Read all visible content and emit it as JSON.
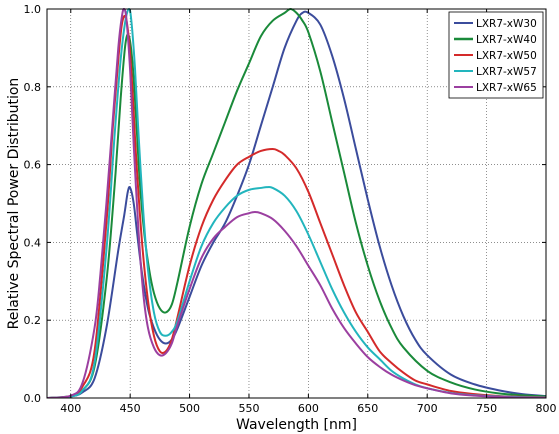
{
  "chart_data": {
    "type": "line",
    "title": "",
    "xlabel": "Wavelength [nm]",
    "ylabel": "Relative Spectral Power Distribution",
    "xlim": [
      380,
      800
    ],
    "ylim": [
      0,
      1.0
    ],
    "xticks": [
      400,
      450,
      500,
      550,
      600,
      650,
      700,
      750,
      800
    ],
    "yticks": [
      0.0,
      0.2,
      0.4,
      0.6,
      0.8,
      1.0
    ],
    "grid": true,
    "legend_position": "top-right",
    "series": [
      {
        "name": "LXR7-xW30",
        "color": "#3b4c9c",
        "x": [
          380,
          400,
          410,
          420,
          430,
          440,
          445,
          448,
          450,
          453,
          456,
          460,
          465,
          470,
          475,
          480,
          485,
          490,
          500,
          510,
          520,
          530,
          540,
          550,
          560,
          570,
          580,
          590,
          595,
          600,
          610,
          620,
          630,
          640,
          650,
          660,
          670,
          680,
          690,
          700,
          720,
          740,
          760,
          780,
          800
        ],
        "y": [
          0.0,
          0.004,
          0.015,
          0.05,
          0.18,
          0.38,
          0.47,
          0.53,
          0.54,
          0.5,
          0.42,
          0.32,
          0.23,
          0.18,
          0.15,
          0.14,
          0.15,
          0.18,
          0.26,
          0.34,
          0.4,
          0.45,
          0.52,
          0.6,
          0.7,
          0.8,
          0.9,
          0.97,
          0.99,
          0.99,
          0.96,
          0.88,
          0.77,
          0.64,
          0.51,
          0.39,
          0.29,
          0.21,
          0.15,
          0.11,
          0.06,
          0.035,
          0.02,
          0.01,
          0.005
        ]
      },
      {
        "name": "LXR7-xW40",
        "color": "#1a8a3a",
        "x": [
          380,
          400,
          410,
          420,
          430,
          437,
          442,
          446,
          449,
          452,
          455,
          458,
          462,
          466,
          470,
          475,
          480,
          485,
          490,
          500,
          510,
          520,
          530,
          540,
          550,
          560,
          570,
          580,
          585,
          590,
          595,
          600,
          610,
          620,
          630,
          640,
          650,
          660,
          670,
          680,
          700,
          720,
          740,
          760,
          780,
          800
        ],
        "y": [
          0.0,
          0.005,
          0.02,
          0.08,
          0.3,
          0.55,
          0.77,
          0.91,
          0.93,
          0.86,
          0.72,
          0.56,
          0.42,
          0.33,
          0.27,
          0.23,
          0.22,
          0.24,
          0.3,
          0.44,
          0.55,
          0.63,
          0.71,
          0.79,
          0.86,
          0.93,
          0.97,
          0.99,
          1.0,
          0.99,
          0.97,
          0.94,
          0.84,
          0.71,
          0.58,
          0.45,
          0.34,
          0.25,
          0.18,
          0.13,
          0.07,
          0.04,
          0.022,
          0.012,
          0.007,
          0.004
        ]
      },
      {
        "name": "LXR7-xW50",
        "color": "#d42a2a",
        "x": [
          380,
          400,
          410,
          420,
          430,
          435,
          440,
          443,
          446,
          449,
          452,
          455,
          460,
          465,
          470,
          475,
          480,
          485,
          490,
          500,
          510,
          520,
          530,
          540,
          550,
          560,
          570,
          575,
          580,
          590,
          600,
          610,
          620,
          630,
          640,
          650,
          660,
          670,
          680,
          690,
          700,
          720,
          740,
          760,
          780,
          800
        ],
        "y": [
          0.0,
          0.005,
          0.03,
          0.12,
          0.45,
          0.68,
          0.87,
          0.96,
          0.98,
          0.92,
          0.79,
          0.62,
          0.4,
          0.25,
          0.16,
          0.12,
          0.12,
          0.15,
          0.21,
          0.34,
          0.44,
          0.51,
          0.56,
          0.6,
          0.62,
          0.635,
          0.64,
          0.635,
          0.625,
          0.59,
          0.53,
          0.45,
          0.37,
          0.29,
          0.22,
          0.17,
          0.12,
          0.09,
          0.065,
          0.045,
          0.035,
          0.018,
          0.01,
          0.005,
          0.003,
          0.002
        ]
      },
      {
        "name": "LXR7-xW57",
        "color": "#22b5bd",
        "x": [
          380,
          400,
          410,
          420,
          430,
          437,
          442,
          446,
          449,
          451,
          454,
          457,
          461,
          465,
          470,
          475,
          480,
          485,
          490,
          500,
          510,
          520,
          530,
          540,
          550,
          560,
          565,
          570,
          580,
          590,
          600,
          610,
          620,
          630,
          640,
          650,
          660,
          670,
          680,
          690,
          700,
          720,
          740,
          760,
          780,
          800
        ],
        "y": [
          0.0,
          0.004,
          0.02,
          0.09,
          0.38,
          0.68,
          0.87,
          0.97,
          1.0,
          0.97,
          0.85,
          0.68,
          0.48,
          0.33,
          0.22,
          0.17,
          0.16,
          0.17,
          0.2,
          0.3,
          0.39,
          0.45,
          0.49,
          0.52,
          0.535,
          0.54,
          0.542,
          0.54,
          0.52,
          0.48,
          0.42,
          0.35,
          0.28,
          0.22,
          0.17,
          0.13,
          0.1,
          0.07,
          0.05,
          0.035,
          0.025,
          0.013,
          0.007,
          0.004,
          0.002,
          0.001
        ]
      },
      {
        "name": "LXR7-xW65",
        "color": "#9b3fa0",
        "x": [
          380,
          400,
          410,
          420,
          425,
          430,
          435,
          440,
          443,
          445,
          447,
          450,
          453,
          457,
          461,
          465,
          470,
          475,
          480,
          485,
          490,
          500,
          510,
          520,
          530,
          540,
          550,
          555,
          560,
          570,
          580,
          590,
          600,
          610,
          620,
          630,
          640,
          650,
          660,
          670,
          680,
          690,
          700,
          720,
          740,
          760,
          780,
          800
        ],
        "y": [
          0.0,
          0.006,
          0.04,
          0.18,
          0.32,
          0.5,
          0.7,
          0.9,
          0.98,
          1.0,
          0.97,
          0.84,
          0.65,
          0.43,
          0.27,
          0.18,
          0.13,
          0.11,
          0.115,
          0.14,
          0.19,
          0.28,
          0.36,
          0.41,
          0.44,
          0.465,
          0.475,
          0.478,
          0.475,
          0.46,
          0.43,
          0.39,
          0.34,
          0.29,
          0.23,
          0.18,
          0.14,
          0.105,
          0.08,
          0.06,
          0.045,
          0.033,
          0.025,
          0.012,
          0.006,
          0.003,
          0.001,
          0.0
        ]
      }
    ]
  }
}
